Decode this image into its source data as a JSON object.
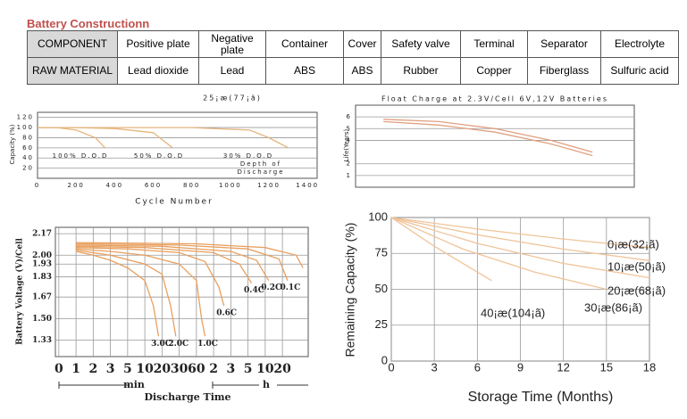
{
  "title": "Battery Constructionn",
  "table": {
    "rows": [
      [
        "COMPONENT",
        "Positive plate",
        "Negative plate",
        "Container",
        "Cover",
        "Safety valve",
        "Terminal",
        "Separator",
        "Electrolyte"
      ],
      [
        "RAW MATERIAL",
        "Lead dioxide",
        "Lead",
        "ABS",
        "ABS",
        "Rubber",
        "Copper",
        "Fiberglass",
        "Sulfuric acid"
      ]
    ]
  },
  "charts": [
    {
      "type": "line",
      "title": "25¡æ(77¡ã)",
      "xlabel": "Cycle Number",
      "ylabel": "Capacity (%)",
      "xlim": [
        0,
        1450
      ],
      "ylim": [
        0,
        130
      ],
      "xticks": [
        0,
        200,
        400,
        600,
        800,
        1000,
        1200,
        1400
      ],
      "yticks": [
        20,
        40,
        60,
        80,
        100,
        120
      ],
      "grid": true,
      "annotations": [
        "Depth of",
        "Discharge"
      ],
      "series": [
        {
          "name": "100% D.O.D",
          "color": "#e6b47c",
          "x": [
            0,
            100,
            200,
            300,
            350
          ],
          "values": [
            100,
            100,
            95,
            80,
            60
          ]
        },
        {
          "name": "50% D.O.D",
          "color": "#e6b47c",
          "x": [
            0,
            200,
            400,
            600,
            650,
            700
          ],
          "values": [
            100,
            100,
            98,
            90,
            75,
            60
          ]
        },
        {
          "name": "30% D.O.D",
          "color": "#e6b47c",
          "x": [
            0,
            400,
            800,
            1100,
            1200,
            1300
          ],
          "values": [
            100,
            100,
            100,
            95,
            80,
            60
          ]
        }
      ]
    },
    {
      "type": "line",
      "title": "Float Charge at 2.3V/Cell 6V,12V Batteries",
      "ylabel": "Life(Years)",
      "xlim": [
        0,
        10
      ],
      "ylim": [
        0,
        7
      ],
      "yticks": [
        1,
        2,
        4,
        5,
        6
      ],
      "grid": true,
      "series": [
        {
          "color": "#e0a080",
          "x": [
            1,
            3,
            5,
            7,
            8.5
          ],
          "values": [
            5.8,
            5.6,
            5.0,
            4.0,
            3.0
          ]
        },
        {
          "color": "#e0a080",
          "x": [
            1,
            3,
            5,
            7,
            8.5
          ],
          "values": [
            5.6,
            5.3,
            4.7,
            3.7,
            2.7
          ]
        }
      ]
    },
    {
      "type": "line",
      "xlabel": "Discharge Time",
      "ylabel": "Battery Voltage (V)/Cell",
      "xlim": [
        -0.2,
        14.5
      ],
      "ylim": [
        1.2,
        2.22
      ],
      "xticks": [
        0,
        1,
        {
          "value": 2,
          "label": "2"
        },
        3,
        {
          "value": 4,
          "label": "5"
        },
        {
          "value": 5,
          "label": "10"
        },
        {
          "value": 6,
          "label": "20"
        },
        {
          "value": 7,
          "label": "30"
        },
        {
          "value": 8,
          "label": "60"
        },
        {
          "value": 9,
          "label": "2"
        },
        {
          "value": 10,
          "label": "3"
        },
        {
          "value": 11,
          "label": "5"
        },
        {
          "value": 12,
          "label": "10"
        },
        {
          "value": 13,
          "label": "20"
        }
      ],
      "yticks": [
        1.33,
        {
          "value": 1.5,
          "label": "1.50"
        },
        1.67,
        1.83,
        1.93,
        {
          "value": 2,
          "label": "2.00"
        },
        2.17
      ],
      "grid": true,
      "annotations": [
        "min",
        "h"
      ],
      "series": [
        {
          "name": "3.0C",
          "color": "#e8a060",
          "x": [
            1,
            2,
            3,
            4,
            5,
            5.5,
            5.8
          ],
          "values": [
            2.03,
            2.0,
            1.96,
            1.9,
            1.8,
            1.6,
            1.36
          ]
        },
        {
          "name": "2.0C",
          "color": "#e8a060",
          "x": [
            1,
            3,
            5,
            6,
            6.5,
            6.8
          ],
          "values": [
            2.04,
            2.0,
            1.93,
            1.85,
            1.6,
            1.36
          ]
        },
        {
          "name": "1.0C",
          "color": "#e8a060",
          "x": [
            1,
            3,
            5,
            7,
            8,
            8.3,
            8.5
          ],
          "values": [
            2.05,
            2.03,
            2.0,
            1.93,
            1.8,
            1.5,
            1.36
          ]
        },
        {
          "name": "0.6C",
          "color": "#e8a060",
          "x": [
            1,
            4,
            7,
            8.5,
            9.3,
            9.6
          ],
          "values": [
            2.06,
            2.05,
            2.02,
            1.95,
            1.75,
            1.6
          ]
        },
        {
          "name": "0.4C",
          "color": "#e8a060",
          "x": [
            1,
            5,
            9,
            10.5,
            11.2
          ],
          "values": [
            2.07,
            2.06,
            2.02,
            1.93,
            1.78
          ]
        },
        {
          "name": "0.2C",
          "color": "#e8a060",
          "x": [
            1,
            6,
            10,
            11.5,
            12.2
          ],
          "values": [
            2.08,
            2.07,
            2.03,
            1.96,
            1.8
          ]
        },
        {
          "name": "0.1C",
          "color": "#e8a060",
          "x": [
            1,
            7,
            11,
            12.8,
            13.3
          ],
          "values": [
            2.09,
            2.08,
            2.05,
            1.97,
            1.8
          ]
        },
        {
          "color": "#e8a060",
          "x": [
            1,
            8,
            12,
            13.8,
            14.2
          ],
          "values": [
            2.1,
            2.09,
            2.06,
            2.0,
            1.9
          ]
        }
      ]
    },
    {
      "type": "line",
      "xlabel": "Storage Time (Months)",
      "ylabel": "Remaining Capacity (%)",
      "xlim": [
        0,
        18
      ],
      "ylim": [
        0,
        100
      ],
      "xticks": [
        0,
        3,
        6,
        9,
        12,
        15,
        18
      ],
      "yticks": [
        0,
        25,
        50,
        75,
        100
      ],
      "grid": true,
      "series": [
        {
          "name": "0¡æ(32¡ã)",
          "color": "#f0c49a",
          "x": [
            0,
            6,
            12,
            18
          ],
          "values": [
            100,
            92,
            85,
            79
          ]
        },
        {
          "name": "10¡æ(50¡ã)",
          "color": "#f0c49a",
          "x": [
            0,
            6,
            12,
            18
          ],
          "values": [
            100,
            88,
            78,
            70
          ]
        },
        {
          "name": "20¡æ(68¡ã)",
          "color": "#f0c49a",
          "x": [
            0,
            6,
            12,
            18
          ],
          "values": [
            100,
            82,
            68,
            58
          ]
        },
        {
          "name": "30¡æ(86¡ã)",
          "color": "#f0c49a",
          "x": [
            0,
            5,
            10,
            15
          ],
          "values": [
            100,
            78,
            62,
            50
          ]
        },
        {
          "name": "40¡æ(104¡ã)",
          "color": "#f0c49a",
          "x": [
            0,
            3,
            6,
            7
          ],
          "values": [
            100,
            80,
            62,
            56
          ]
        }
      ]
    }
  ]
}
